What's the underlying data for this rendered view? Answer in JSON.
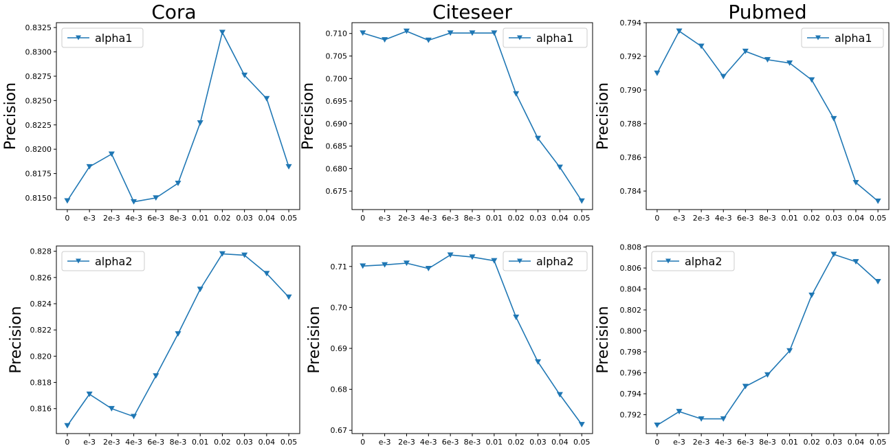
{
  "figure": {
    "column_titles": [
      "Cora",
      "Citeseer",
      "Pubmed"
    ],
    "line_color": "#1f77b4"
  },
  "chart_data": [
    {
      "type": "line",
      "title": "Cora",
      "xlabel": "",
      "ylabel": "Precision",
      "categories": [
        "0",
        "e-3",
        "2e-3",
        "4e-3",
        "6e-3",
        "8e-3",
        "0.01",
        "0.02",
        "0.03",
        "0.04",
        "0.05"
      ],
      "series": [
        {
          "name": "alpha1",
          "values": [
            0.8147,
            0.8182,
            0.8195,
            0.8146,
            0.815,
            0.8165,
            0.8227,
            0.832,
            0.8276,
            0.8252,
            0.8182
          ]
        }
      ],
      "yticks": [
        "0.8150",
        "0.8175",
        "0.8200",
        "0.8225",
        "0.8250",
        "0.8275",
        "0.8300",
        "0.8325"
      ],
      "ylim": [
        0.8138,
        0.833
      ],
      "legend_position": "top-left",
      "grid": false
    },
    {
      "type": "line",
      "title": "Citeseer",
      "xlabel": "",
      "ylabel": "Precision",
      "categories": [
        "0",
        "e-3",
        "2e-3",
        "4e-3",
        "6e-3",
        "8e-3",
        "0.01",
        "0.02",
        "0.03",
        "0.04",
        "0.05"
      ],
      "series": [
        {
          "name": "alpha1",
          "values": [
            0.7101,
            0.7086,
            0.7105,
            0.7085,
            0.7101,
            0.7101,
            0.7101,
            0.6966,
            0.6867,
            0.6803,
            0.6728
          ]
        }
      ],
      "yticks": [
        "0.675",
        "0.680",
        "0.685",
        "0.690",
        "0.695",
        "0.700",
        "0.705",
        "0.710"
      ],
      "ylim": [
        0.6709,
        0.7124
      ],
      "legend_position": "top-right",
      "grid": false
    },
    {
      "type": "line",
      "title": "Pubmed",
      "xlabel": "",
      "ylabel": "Precision",
      "categories": [
        "0",
        "e-3",
        "2e-3",
        "4e-3",
        "6e-3",
        "8e-3",
        "0.01",
        "0.02",
        "0.03",
        "0.04",
        "0.05"
      ],
      "series": [
        {
          "name": "alpha1",
          "values": [
            0.791,
            0.7935,
            0.7926,
            0.7908,
            0.7923,
            0.7918,
            0.7916,
            0.7906,
            0.7883,
            0.7845,
            0.7834
          ]
        }
      ],
      "yticks": [
        "0.784",
        "0.786",
        "0.788",
        "0.790",
        "0.792",
        "0.794"
      ],
      "ylim": [
        0.7829,
        0.794
      ],
      "legend_position": "top-right",
      "grid": false
    },
    {
      "type": "line",
      "title": "",
      "xlabel": "",
      "ylabel": "Precision",
      "categories": [
        "0",
        "e-3",
        "2e-3",
        "4e-3",
        "6e-3",
        "8e-3",
        "0.01",
        "0.02",
        "0.03",
        "0.04",
        "0.05"
      ],
      "series": [
        {
          "name": "alpha2",
          "values": [
            0.8147,
            0.8171,
            0.816,
            0.8154,
            0.8185,
            0.8217,
            0.8251,
            0.8278,
            0.8277,
            0.8263,
            0.8245
          ]
        }
      ],
      "yticks": [
        "0.816",
        "0.818",
        "0.820",
        "0.822",
        "0.824",
        "0.826",
        "0.828"
      ],
      "ylim": [
        0.8141,
        0.8284
      ],
      "legend_position": "top-left",
      "grid": false
    },
    {
      "type": "line",
      "title": "",
      "xlabel": "",
      "ylabel": "Precision",
      "categories": [
        "0",
        "e-3",
        "2e-3",
        "4e-3",
        "6e-3",
        "8e-3",
        "0.01",
        "0.02",
        "0.03",
        "0.04",
        "0.05"
      ],
      "series": [
        {
          "name": "alpha2",
          "values": [
            0.7101,
            0.7104,
            0.7108,
            0.7095,
            0.7128,
            0.7123,
            0.7114,
            0.6976,
            0.6867,
            0.6787,
            0.6714
          ]
        }
      ],
      "yticks": [
        "0.67",
        "0.68",
        "0.69",
        "0.70",
        "0.71"
      ],
      "ylim": [
        0.6692,
        0.715
      ],
      "legend_position": "top-right",
      "grid": false
    },
    {
      "type": "line",
      "title": "",
      "xlabel": "",
      "ylabel": "Precision",
      "categories": [
        "0",
        "e-3",
        "2e-3",
        "4e-3",
        "6e-3",
        "8e-3",
        "0.01",
        "0.02",
        "0.03",
        "0.04",
        "0.05"
      ],
      "series": [
        {
          "name": "alpha2",
          "values": [
            0.791,
            0.7923,
            0.7916,
            0.7916,
            0.7947,
            0.7958,
            0.7981,
            0.8034,
            0.8073,
            0.8066,
            0.8047
          ]
        }
      ],
      "yticks": [
        "0.792",
        "0.794",
        "0.796",
        "0.798",
        "0.800",
        "0.802",
        "0.804",
        "0.806",
        "0.808"
      ],
      "ylim": [
        0.7902,
        0.8081
      ],
      "legend_position": "top-left",
      "grid": false
    }
  ]
}
